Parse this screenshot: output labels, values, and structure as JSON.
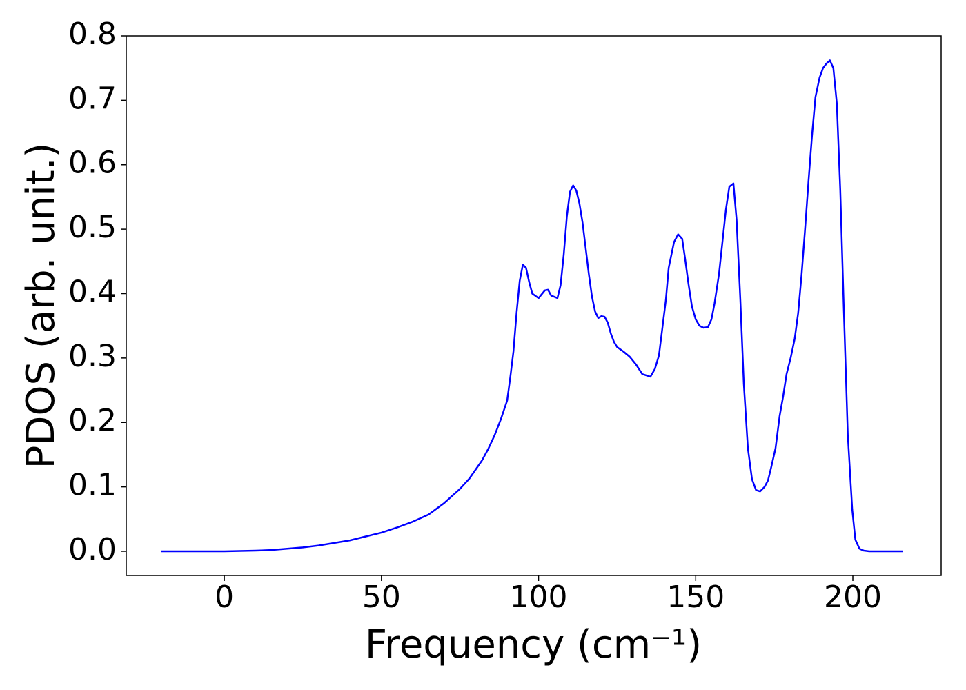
{
  "chart_data": {
    "type": "line",
    "x_label": "Frequency (cm⁻¹)",
    "y_label": "PDOS (arb. unit.)",
    "x": [
      -20,
      -10,
      0,
      5,
      10,
      15,
      20,
      25,
      30,
      35,
      40,
      45,
      50,
      55,
      60,
      65,
      70,
      75,
      78,
      80,
      82,
      84,
      86,
      88,
      90,
      91,
      92,
      93,
      94,
      95,
      96,
      97,
      98,
      100,
      102,
      103,
      104,
      106,
      107,
      108,
      109,
      110,
      111,
      112,
      113,
      114,
      115,
      116,
      117,
      118,
      119,
      120,
      121,
      122,
      123,
      124,
      125,
      127,
      129,
      131,
      133,
      135.6,
      137,
      138.3,
      139.4,
      140.5,
      141.4,
      143.1,
      144.4,
      145.7,
      146.6,
      147.7,
      148.8,
      150,
      151.2,
      152.5,
      153.9,
      155,
      156,
      157.4,
      158.5,
      159.6,
      160.7,
      162,
      163,
      164.2,
      165.3,
      166.6,
      167.9,
      169.2,
      170.5,
      171.9,
      173,
      174,
      175.4,
      176.7,
      177.8,
      178.9,
      180.2,
      181.5,
      182.6,
      183.7,
      184.8,
      185.9,
      187,
      188.1,
      189.4,
      190.5,
      191.6,
      192.7,
      193.8,
      194.9,
      196,
      197.1,
      198.4,
      199.8,
      200.8,
      202.1,
      203.5,
      205.2,
      216
    ],
    "series": [
      {
        "color": "#0000ff",
        "values": [
          0,
          0,
          0,
          0.0005,
          0.001,
          0.002,
          0.004,
          0.006,
          0.009,
          0.013,
          0.017,
          0.023,
          0.029,
          0.037,
          0.046,
          0.057,
          0.075,
          0.097,
          0.113,
          0.127,
          0.141,
          0.159,
          0.18,
          0.205,
          0.234,
          0.27,
          0.31,
          0.37,
          0.42,
          0.445,
          0.44,
          0.418,
          0.4,
          0.393,
          0.405,
          0.406,
          0.397,
          0.393,
          0.413,
          0.46,
          0.52,
          0.558,
          0.568,
          0.56,
          0.54,
          0.51,
          0.47,
          0.43,
          0.395,
          0.372,
          0.362,
          0.365,
          0.364,
          0.355,
          0.338,
          0.325,
          0.317,
          0.31,
          0.302,
          0.29,
          0.275,
          0.271,
          0.283,
          0.304,
          0.347,
          0.39,
          0.44,
          0.48,
          0.492,
          0.485,
          0.455,
          0.415,
          0.38,
          0.36,
          0.35,
          0.347,
          0.348,
          0.36,
          0.385,
          0.43,
          0.48,
          0.53,
          0.566,
          0.571,
          0.515,
          0.39,
          0.26,
          0.16,
          0.112,
          0.095,
          0.093,
          0.1,
          0.11,
          0.13,
          0.16,
          0.21,
          0.24,
          0.275,
          0.3,
          0.33,
          0.37,
          0.43,
          0.5,
          0.575,
          0.645,
          0.705,
          0.735,
          0.75,
          0.757,
          0.762,
          0.75,
          0.695,
          0.56,
          0.38,
          0.18,
          0.065,
          0.018,
          0.004,
          0.001,
          0,
          0
        ]
      }
    ],
    "xlim": [
      -31.2,
      228.1
    ],
    "ylim": [
      -0.0375,
      0.8
    ],
    "xticks": [
      0,
      50,
      100,
      150,
      200
    ],
    "yticks": [
      {
        "value": 0,
        "label": "0.0"
      },
      0.1,
      0.2,
      0.3,
      0.4,
      0.5,
      0.6,
      0.7,
      0.8
    ]
  }
}
